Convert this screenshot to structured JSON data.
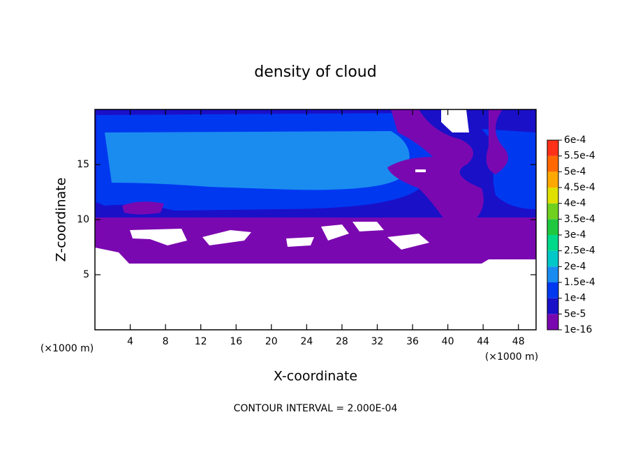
{
  "chart_data": {
    "type": "contour",
    "title": "density of cloud",
    "xlabel": "X-coordinate",
    "ylabel": "Z-coordinate",
    "x_unit_label": "(×1000 m)",
    "y_unit_label": "(×1000 m)",
    "annotation": "CONTOUR INTERVAL = 2.000E-04",
    "xlim": [
      0,
      50
    ],
    "ylim": [
      0,
      20
    ],
    "xticks": [
      4,
      8,
      12,
      16,
      20,
      24,
      28,
      32,
      36,
      40,
      44,
      48
    ],
    "yticks": [
      5,
      10,
      15
    ],
    "colorbar_levels": [
      {
        "value": 1e-16,
        "label": "1e-16"
      },
      {
        "value": 5e-05,
        "label": "5e-5"
      },
      {
        "value": 0.0001,
        "label": "1e-4"
      },
      {
        "value": 0.00015,
        "label": "1.5e-4"
      },
      {
        "value": 0.0002,
        "label": "2e-4"
      },
      {
        "value": 0.00025,
        "label": "2.5e-4"
      },
      {
        "value": 0.0003,
        "label": "3e-4"
      },
      {
        "value": 0.00035,
        "label": "3.5e-4"
      },
      {
        "value": 0.0004,
        "label": "4e-4"
      },
      {
        "value": 0.00045,
        "label": "4.5e-4"
      },
      {
        "value": 0.0005,
        "label": "5e-4"
      },
      {
        "value": 0.00055,
        "label": "5.5e-4"
      },
      {
        "value": 0.0006,
        "label": "6e-4"
      }
    ],
    "colorbar_colors": [
      "#7a08b0",
      "#1a10c8",
      "#0038f0",
      "#1a8cf0",
      "#00c8c8",
      "#00d88a",
      "#20c840",
      "#70d020",
      "#e0e000",
      "#ffa800",
      "#ff6800",
      "#ff3018"
    ]
  }
}
